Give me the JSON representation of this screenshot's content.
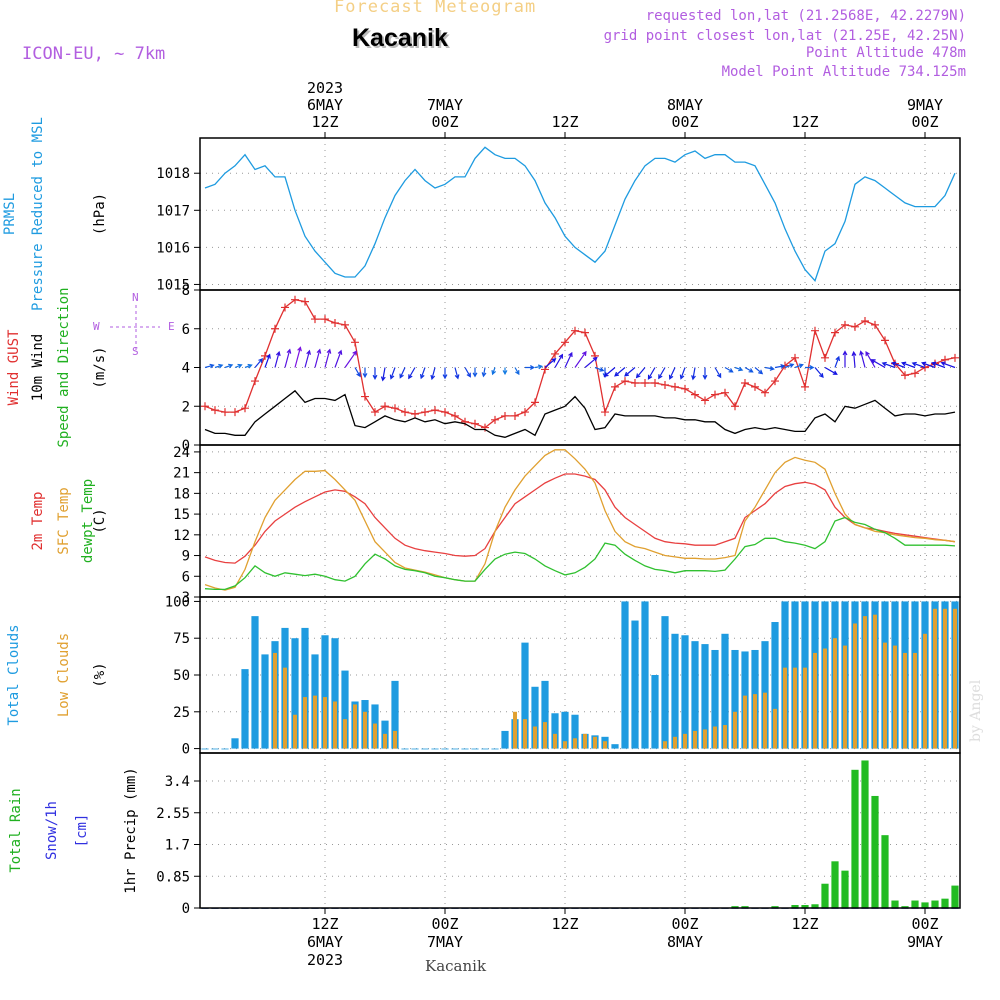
{
  "header": {
    "title": "Forecast Meteogram",
    "location": "Kacanik",
    "model": "ICON-EU, ~ 7km",
    "requested": "requested lon,lat (21.2568E, 42.2279N)",
    "gridpoint": "grid point closest lon,lat (21.25E, 42.25N)",
    "point_alt": "Point Altitude 478m",
    "model_alt": "Model Point Altitude 734.125m",
    "footer_location": "Kacanik",
    "credit": "by Angel"
  },
  "time_axis": {
    "top": [
      {
        "h": 12,
        "lines": [
          "2023",
          "6MAY",
          "12Z"
        ]
      },
      {
        "h": 24,
        "lines": [
          "7MAY",
          "00Z"
        ]
      },
      {
        "h": 36,
        "lines": [
          "12Z"
        ]
      },
      {
        "h": 48,
        "lines": [
          "8MAY",
          "00Z"
        ]
      },
      {
        "h": 60,
        "lines": [
          "12Z"
        ]
      },
      {
        "h": 72,
        "lines": [
          "9MAY",
          "00Z"
        ]
      }
    ],
    "bottom": [
      {
        "h": 12,
        "lines": [
          "12Z",
          "6MAY",
          "2023"
        ]
      },
      {
        "h": 24,
        "lines": [
          "00Z",
          "7MAY"
        ]
      },
      {
        "h": 36,
        "lines": [
          "12Z"
        ]
      },
      {
        "h": 48,
        "lines": [
          "00Z",
          "8MAY"
        ]
      },
      {
        "h": 60,
        "lines": [
          "12Z"
        ]
      },
      {
        "h": 72,
        "lines": [
          "00Z",
          "9MAY"
        ]
      }
    ]
  },
  "chart_data": [
    {
      "type": "line",
      "title": "PRMSL Pressure Reduced to MSL",
      "ylabel": "(hPa)",
      "label_lines": [
        [
          "PRMSL",
          "#1e9be0"
        ],
        [
          "Pressure Reduced to MSL",
          "#1e9be0"
        ]
      ],
      "ylim": [
        1014.85,
        1018.95
      ],
      "yticks": [
        1015,
        1016,
        1017,
        1018
      ],
      "series": [
        {
          "name": "PRMSL",
          "color": "#1e9be0",
          "values": [
            1017.6,
            1017.7,
            1018.0,
            1018.2,
            1018.5,
            1018.1,
            1018.2,
            1017.9,
            1017.9,
            1017.0,
            1016.3,
            1015.9,
            1015.6,
            1015.3,
            1015.2,
            1015.2,
            1015.5,
            1016.1,
            1016.8,
            1017.4,
            1017.8,
            1018.1,
            1017.8,
            1017.6,
            1017.7,
            1017.9,
            1017.9,
            1018.4,
            1018.7,
            1018.5,
            1018.4,
            1018.4,
            1018.2,
            1017.8,
            1017.2,
            1016.8,
            1016.3,
            1016.0,
            1015.8,
            1015.6,
            1015.9,
            1016.6,
            1017.3,
            1017.8,
            1018.2,
            1018.4,
            1018.4,
            1018.3,
            1018.5,
            1018.6,
            1018.4,
            1018.5,
            1018.5,
            1018.3,
            1018.3,
            1018.2,
            1017.7,
            1017.2,
            1016.5,
            1015.9,
            1015.4,
            1015.1,
            1015.9,
            1016.1,
            1016.7,
            1017.7,
            1017.9,
            1017.8,
            1017.6,
            1017.4,
            1017.2,
            1017.1,
            1017.1,
            1017.1,
            1017.4,
            1018.0
          ]
        }
      ]
    },
    {
      "type": "line",
      "title": "Wind GUST / 10m Wind Speed and Direction",
      "ylabel": "(m/s)",
      "label_lines": [
        [
          "Wind GUST",
          "#e03030"
        ],
        [
          "10m Wind",
          "#000000"
        ],
        [
          "Speed and Direction",
          "#20b020"
        ]
      ],
      "compass": [
        "N",
        "S",
        "W",
        "E"
      ],
      "ylim": [
        0,
        8
      ],
      "yticks": [
        0,
        2,
        4,
        6,
        8
      ],
      "series": [
        {
          "name": "Wind GUST",
          "color": "#e03030",
          "marker": "+",
          "values": [
            2.0,
            1.8,
            1.7,
            1.7,
            1.9,
            3.3,
            4.6,
            6.0,
            7.1,
            7.5,
            7.4,
            6.5,
            6.5,
            6.3,
            6.2,
            5.3,
            2.5,
            1.7,
            2.0,
            1.9,
            1.7,
            1.6,
            1.7,
            1.8,
            1.7,
            1.5,
            1.2,
            1.1,
            0.9,
            1.3,
            1.5,
            1.5,
            1.7,
            2.2,
            3.9,
            4.7,
            5.3,
            5.9,
            5.8,
            4.6,
            1.7,
            3.0,
            3.3,
            3.2,
            3.2,
            3.2,
            3.1,
            3.0,
            2.9,
            2.6,
            2.3,
            2.6,
            2.7,
            2.0,
            3.2,
            3.0,
            2.7,
            3.3,
            4.1,
            4.5,
            3.0,
            5.9,
            4.5,
            5.8,
            6.2,
            6.1,
            6.4,
            6.2,
            5.4,
            4.2,
            3.6,
            3.7,
            4.0,
            4.2,
            4.4,
            4.5
          ]
        },
        {
          "name": "10m Wind",
          "color": "#000000",
          "values": [
            0.8,
            0.6,
            0.6,
            0.5,
            0.5,
            1.2,
            1.6,
            2.0,
            2.4,
            2.8,
            2.2,
            2.4,
            2.4,
            2.3,
            2.6,
            1.0,
            0.9,
            1.2,
            1.5,
            1.3,
            1.2,
            1.4,
            1.2,
            1.3,
            1.1,
            1.2,
            1.1,
            0.8,
            0.8,
            0.5,
            0.4,
            0.6,
            0.8,
            0.5,
            1.6,
            1.8,
            2.0,
            2.5,
            1.9,
            0.8,
            0.9,
            1.6,
            1.5,
            1.5,
            1.5,
            1.5,
            1.4,
            1.4,
            1.3,
            1.3,
            1.2,
            1.2,
            0.8,
            0.6,
            0.8,
            0.9,
            0.8,
            0.9,
            0.8,
            0.7,
            0.7,
            1.4,
            1.6,
            1.2,
            2.0,
            1.9,
            2.1,
            2.3,
            1.9,
            1.5,
            1.6,
            1.6,
            1.5,
            1.6,
            1.6,
            1.7
          ]
        },
        {
          "name": "10m Wind direction (deg, from)",
          "role": "arrows",
          "values": [
            255,
            252,
            250,
            248,
            250,
            220,
            200,
            195,
            195,
            195,
            195,
            195,
            195,
            200,
            215,
            330,
            0,
            0,
            10,
            20,
            25,
            30,
            20,
            15,
            0,
            345,
            330,
            0,
            10,
            20,
            0,
            330,
            270,
            260,
            230,
            210,
            205,
            215,
            230,
            290,
            0,
            50,
            50,
            50,
            40,
            30,
            30,
            25,
            20,
            10,
            0,
            330,
            300,
            290,
            300,
            310,
            280,
            260,
            250,
            250,
            270,
            320,
            300,
            200,
            180,
            175,
            165,
            150,
            120,
            110,
            110,
            110,
            110,
            110,
            110,
            110
          ]
        }
      ]
    },
    {
      "type": "line",
      "title": "2m Temp / SFC Temp / dewpt Temp",
      "ylabel": "(C)",
      "label_lines": [
        [
          "2m Temp",
          "#e03030"
        ],
        [
          "SFC Temp",
          "#e0a030"
        ],
        [
          "dewpt Temp",
          "#20b020"
        ]
      ],
      "ylim": [
        3,
        25
      ],
      "yticks": [
        3,
        6,
        9,
        12,
        15,
        18,
        21,
        24
      ],
      "series": [
        {
          "name": "2m Temp",
          "color": "#e84040",
          "values": [
            8.8,
            8.3,
            8.0,
            7.9,
            8.9,
            10.5,
            12.5,
            14.0,
            15.0,
            16.0,
            16.8,
            17.5,
            18.2,
            18.5,
            18.3,
            17.5,
            16.5,
            14.5,
            13.0,
            11.5,
            10.5,
            10.0,
            9.7,
            9.5,
            9.3,
            9.0,
            8.9,
            9.0,
            10.0,
            12.5,
            14.5,
            16.5,
            17.5,
            18.5,
            19.5,
            20.2,
            20.8,
            20.8,
            20.5,
            20.0,
            18.5,
            16.0,
            14.5,
            13.5,
            12.5,
            11.5,
            11.0,
            10.8,
            10.7,
            10.5,
            10.5,
            10.5,
            11.0,
            11.5,
            14.5,
            15.5,
            16.5,
            18.0,
            19.0,
            19.4,
            19.6,
            19.3,
            18.5,
            16.0,
            14.5,
            13.5,
            13.0,
            12.8,
            12.5,
            12.2,
            12.0,
            11.8,
            11.6,
            11.4,
            11.2,
            11.0
          ]
        },
        {
          "name": "SFC Temp",
          "color": "#e0a030",
          "values": [
            4.8,
            4.3,
            4.0,
            4.4,
            7.0,
            11.0,
            14.5,
            17.0,
            18.5,
            20.0,
            21.2,
            21.2,
            21.3,
            20.0,
            18.5,
            17.0,
            14.0,
            11.0,
            9.5,
            8.0,
            7.2,
            6.9,
            6.6,
            6.2,
            5.8,
            5.5,
            5.3,
            5.3,
            7.8,
            12.5,
            16.0,
            18.5,
            20.5,
            22.0,
            23.5,
            24.3,
            24.3,
            23.0,
            21.5,
            19.5,
            15.5,
            12.5,
            11.0,
            10.3,
            10.0,
            9.5,
            9.0,
            8.8,
            8.6,
            8.6,
            8.5,
            8.5,
            8.7,
            9.0,
            14.0,
            16.0,
            18.5,
            21.0,
            22.5,
            23.2,
            22.8,
            22.5,
            21.5,
            18.0,
            15.0,
            13.5,
            13.0,
            12.5,
            12.3,
            12.0,
            11.8,
            11.6,
            11.5,
            11.3,
            11.2,
            11.0
          ]
        },
        {
          "name": "dewpt Temp",
          "color": "#30c030",
          "values": [
            4.2,
            4.1,
            4.1,
            4.6,
            5.8,
            7.5,
            6.5,
            6.0,
            6.5,
            6.3,
            6.1,
            6.3,
            6.0,
            5.5,
            5.3,
            6.0,
            7.8,
            9.2,
            8.5,
            7.5,
            7.0,
            6.8,
            6.5,
            6.0,
            5.8,
            5.5,
            5.3,
            5.3,
            7.0,
            8.5,
            9.2,
            9.5,
            9.3,
            8.5,
            7.5,
            6.8,
            6.2,
            6.5,
            7.3,
            8.5,
            10.8,
            10.5,
            9.2,
            8.3,
            7.5,
            7.0,
            6.8,
            6.5,
            6.8,
            6.8,
            6.8,
            6.7,
            6.9,
            8.5,
            10.3,
            10.6,
            11.5,
            11.5,
            11.0,
            10.8,
            10.5,
            10.0,
            11.0,
            14.0,
            14.5,
            13.8,
            13.5,
            12.8,
            12.3,
            11.5,
            10.5,
            10.5,
            10.5,
            10.5,
            10.5,
            10.4
          ]
        }
      ]
    },
    {
      "type": "bar",
      "title": "Total Clouds / Low Clouds",
      "ylabel": "(%)",
      "label_lines": [
        [
          "Total Clouds",
          "#1e9be0"
        ],
        [
          "Low Clouds",
          "#e0a030"
        ]
      ],
      "ylim": [
        -3,
        103
      ],
      "yticks": [
        0,
        25,
        50,
        75,
        100
      ],
      "series": [
        {
          "name": "Total Clouds",
          "color": "#1e9be0",
          "values": [
            0,
            0,
            0,
            7,
            54,
            90,
            64,
            73,
            82,
            75,
            82,
            64,
            77,
            75,
            53,
            32,
            33,
            30,
            19,
            46,
            0,
            0,
            0,
            0,
            0,
            0,
            0,
            0,
            0,
            0,
            12,
            20,
            72,
            42,
            46,
            24,
            25,
            23,
            10,
            9,
            8,
            3,
            100,
            87,
            100,
            50,
            90,
            78,
            77,
            73,
            71,
            67,
            78,
            67,
            66,
            67,
            73,
            86,
            100,
            100,
            100,
            100,
            100,
            100,
            100,
            100,
            100,
            100,
            100,
            100,
            100,
            100,
            100,
            100,
            100,
            100
          ]
        },
        {
          "name": "Low Clouds",
          "color": "#e0a030",
          "values": [
            0,
            0,
            0,
            0,
            0,
            0,
            0,
            65,
            55,
            23,
            35,
            36,
            35,
            32,
            20,
            30,
            25,
            17,
            10,
            12,
            0,
            0,
            0,
            0,
            0,
            0,
            0,
            0,
            0,
            0,
            0,
            25,
            20,
            15,
            18,
            10,
            5,
            7,
            10,
            8,
            5,
            0,
            0,
            0,
            0,
            0,
            5,
            8,
            10,
            12,
            13,
            15,
            16,
            25,
            36,
            37,
            38,
            27,
            55,
            55,
            55,
            65,
            68,
            75,
            70,
            85,
            90,
            91,
            72,
            70,
            65,
            65,
            78,
            95,
            95,
            95
          ]
        }
      ]
    },
    {
      "type": "bar",
      "title": "Total Rain Snow/1h",
      "ylabel": "1hr Precip (mm)",
      "label_lines": [
        [
          "Total  Rain",
          "#20b020"
        ],
        [
          "Snow/1h",
          "#3030e0"
        ],
        [
          "[cm]",
          "#3030e0"
        ]
      ],
      "ylim": [
        0,
        4.15
      ],
      "yticks": [
        0,
        0.85,
        1.7,
        2.55,
        3.4
      ],
      "series": [
        {
          "name": "Total Rain",
          "color": "#22bb22",
          "values": [
            0,
            0,
            0,
            0,
            0,
            0,
            0,
            0,
            0,
            0,
            0,
            0,
            0,
            0,
            0,
            0,
            0,
            0,
            0,
            0,
            0,
            0,
            0,
            0,
            0,
            0,
            0,
            0,
            0,
            0,
            0,
            0,
            0,
            0,
            0,
            0,
            0,
            0,
            0,
            0,
            0,
            0,
            0,
            0,
            0,
            0,
            0,
            0,
            0,
            0,
            0,
            0,
            0,
            0.05,
            0.05,
            0,
            0,
            0.05,
            0,
            0.08,
            0.08,
            0.1,
            0.65,
            1.25,
            1.0,
            3.7,
            3.95,
            3.0,
            1.95,
            0.2,
            0.05,
            0.2,
            0.15,
            0.2,
            0.25,
            0.6
          ]
        },
        {
          "name": "Snow/1h",
          "color": "#3030e0",
          "values": [
            0,
            0,
            0,
            0,
            0,
            0,
            0,
            0,
            0,
            0,
            0,
            0,
            0,
            0,
            0,
            0,
            0,
            0,
            0,
            0,
            0,
            0,
            0,
            0,
            0,
            0,
            0,
            0,
            0,
            0,
            0,
            0,
            0,
            0,
            0,
            0,
            0,
            0,
            0,
            0,
            0,
            0,
            0,
            0,
            0,
            0,
            0,
            0,
            0,
            0,
            0,
            0,
            0,
            0,
            0,
            0,
            0,
            0,
            0,
            0,
            0,
            0,
            0,
            0,
            0,
            0,
            0,
            0,
            0,
            0,
            0,
            0,
            0,
            0,
            0,
            0
          ]
        }
      ]
    }
  ]
}
